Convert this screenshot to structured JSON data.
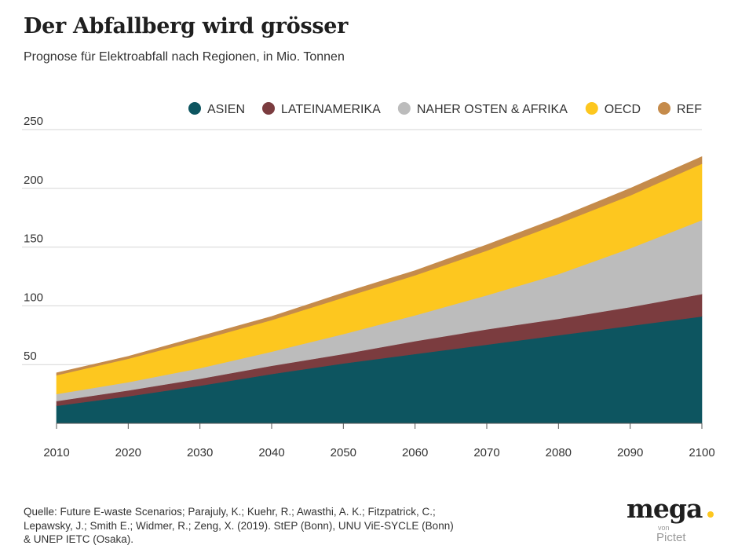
{
  "header": {
    "title": "Der Abfallberg wird grösser",
    "subtitle": "Prognose für Elektroabfall nach Regionen, in Mio. Tonnen"
  },
  "chart_data": {
    "type": "area",
    "stacked": true,
    "title": "Der Abfallberg wird grösser",
    "subtitle": "Prognose für Elektroabfall nach Regionen, in Mio. Tonnen",
    "xlabel": "",
    "ylabel": "",
    "x": [
      2010,
      2020,
      2030,
      2040,
      2050,
      2060,
      2070,
      2080,
      2090,
      2100
    ],
    "xlim": [
      2010,
      2100
    ],
    "ylim": [
      0,
      250
    ],
    "y_ticks": [
      50,
      100,
      150,
      200,
      250
    ],
    "x_ticks": [
      2010,
      2020,
      2030,
      2040,
      2050,
      2060,
      2070,
      2080,
      2090,
      2100
    ],
    "grid": "horizontal",
    "legend_position": "top-right",
    "series": [
      {
        "name": "ASIEN",
        "color": "#0d5560",
        "values": [
          15,
          23,
          32,
          42,
          51,
          59,
          67,
          75,
          83,
          91
        ]
      },
      {
        "name": "LATEINAMERIKA",
        "color": "#7b3c3f",
        "values": [
          4,
          5,
          6,
          7,
          8,
          11,
          13,
          14,
          16,
          19
        ]
      },
      {
        "name": "NAHER OSTEN & AFRIKA",
        "color": "#bcbcbc",
        "values": [
          6,
          7,
          9,
          12,
          17,
          22,
          29,
          38,
          50,
          63
        ]
      },
      {
        "name": "OECD",
        "color": "#fdc71f",
        "values": [
          16,
          20,
          24,
          27,
          31,
          34,
          38,
          43,
          45,
          48
        ]
      },
      {
        "name": "REF",
        "color": "#c58b4b",
        "values": [
          2,
          2,
          3,
          3,
          4,
          4,
          5,
          5,
          6,
          6
        ]
      }
    ]
  },
  "source": {
    "text": "Quelle: Future E-waste Scenarios; Parajuly, K.; Kuehr, R.; Awasthi, A. K.; Fitzpatrick, C.; Lepawsky, J.; Smith E.; Widmer, R.; Zeng, X. (2019). StEP (Bonn), UNU ViE-SYCLE (Bonn) & UNEP IETC (Osaka)."
  },
  "logo": {
    "word": "mega",
    "dot_color": "#fdc71f",
    "von": "von",
    "sub": "Pictet"
  }
}
